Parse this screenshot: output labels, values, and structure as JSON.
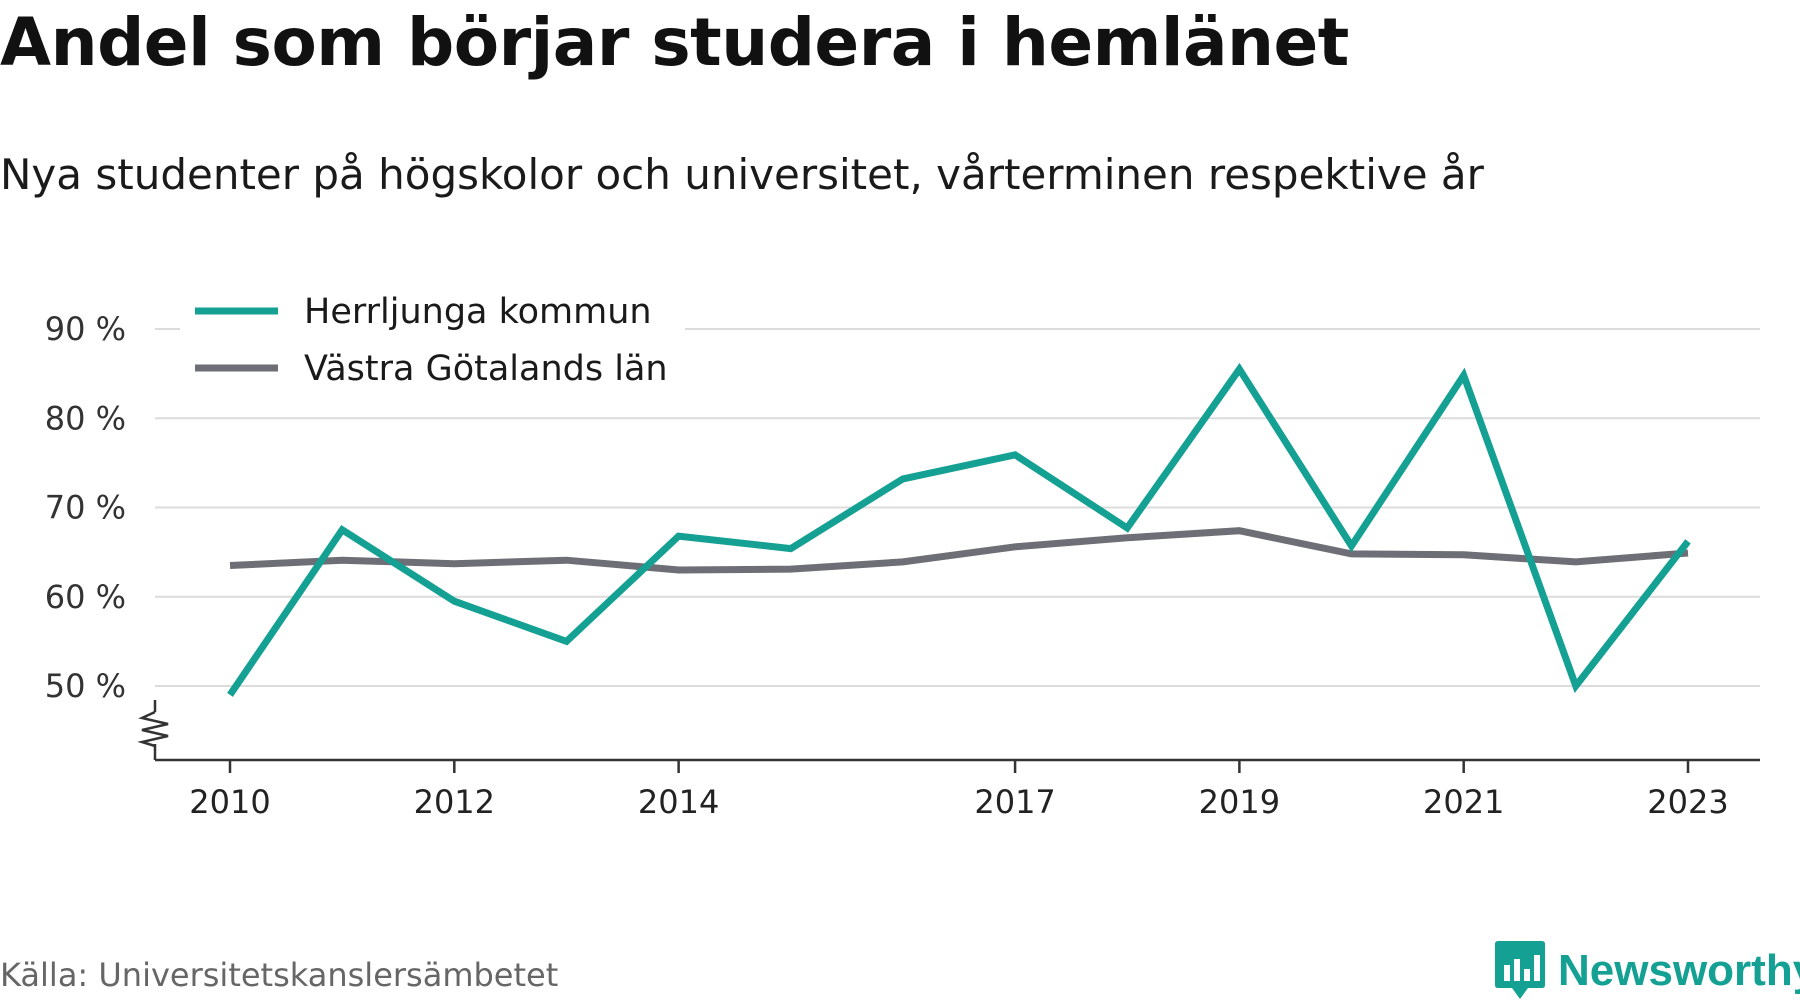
{
  "header": {
    "title": "Andel som börjar studera i hemlänet",
    "subtitle": "Nya studenter på högskolor och universitet, vårterminen respektive år"
  },
  "footer": {
    "source": "Källa: Universitetskanslersämbetet",
    "brand": "Newsworthy",
    "brand_color": "#14a193"
  },
  "chart_data": {
    "type": "line",
    "title": "Andel som börjar studera i hemlänet",
    "subtitle": "Nya studenter på högskolor och universitet, vårterminen respektive år",
    "xlabel": "",
    "ylabel": "",
    "x": [
      2010,
      2011,
      2012,
      2013,
      2014,
      2015,
      2016,
      2017,
      2018,
      2019,
      2020,
      2021,
      2022,
      2023
    ],
    "x_tick_labels": [
      "2010",
      "2012",
      "2014",
      "2017",
      "2019",
      "2021",
      "2023"
    ],
    "y_tick_values": [
      50,
      60,
      70,
      80,
      90
    ],
    "y_tick_labels": [
      "50 %",
      "60 %",
      "70 %",
      "80 %",
      "90 %"
    ],
    "ylim": [
      42,
      90
    ],
    "y_axis_break": true,
    "grid": true,
    "legend_position": "top-left",
    "series": [
      {
        "name": "Herrljunga kommun",
        "color": "#14a193",
        "values": [
          49,
          67.5,
          59.5,
          55,
          66.8,
          65.4,
          73.2,
          75.9,
          67.7,
          85.5,
          65.7,
          84.8,
          50,
          66.2
        ]
      },
      {
        "name": "Västra Götalands län",
        "color": "#6e6e76",
        "values": [
          63.5,
          64.1,
          63.7,
          64.1,
          63,
          63.1,
          63.9,
          65.6,
          66.6,
          67.4,
          64.8,
          64.7,
          63.9,
          64.9
        ]
      }
    ]
  }
}
